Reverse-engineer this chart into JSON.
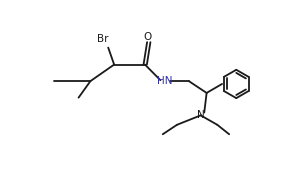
{
  "bg_color": "#ffffff",
  "line_color": "#1a1a1a",
  "br_color": "#1a1a1a",
  "hn_color": "#3333aa",
  "n_color": "#1a1a1a",
  "o_color": "#1a1a1a",
  "line_width": 1.3,
  "font_size": 7.5,
  "fig_width": 3.06,
  "fig_height": 1.84,
  "dpi": 100,
  "xlim": [
    0,
    10
  ],
  "ylim": [
    0,
    6
  ]
}
